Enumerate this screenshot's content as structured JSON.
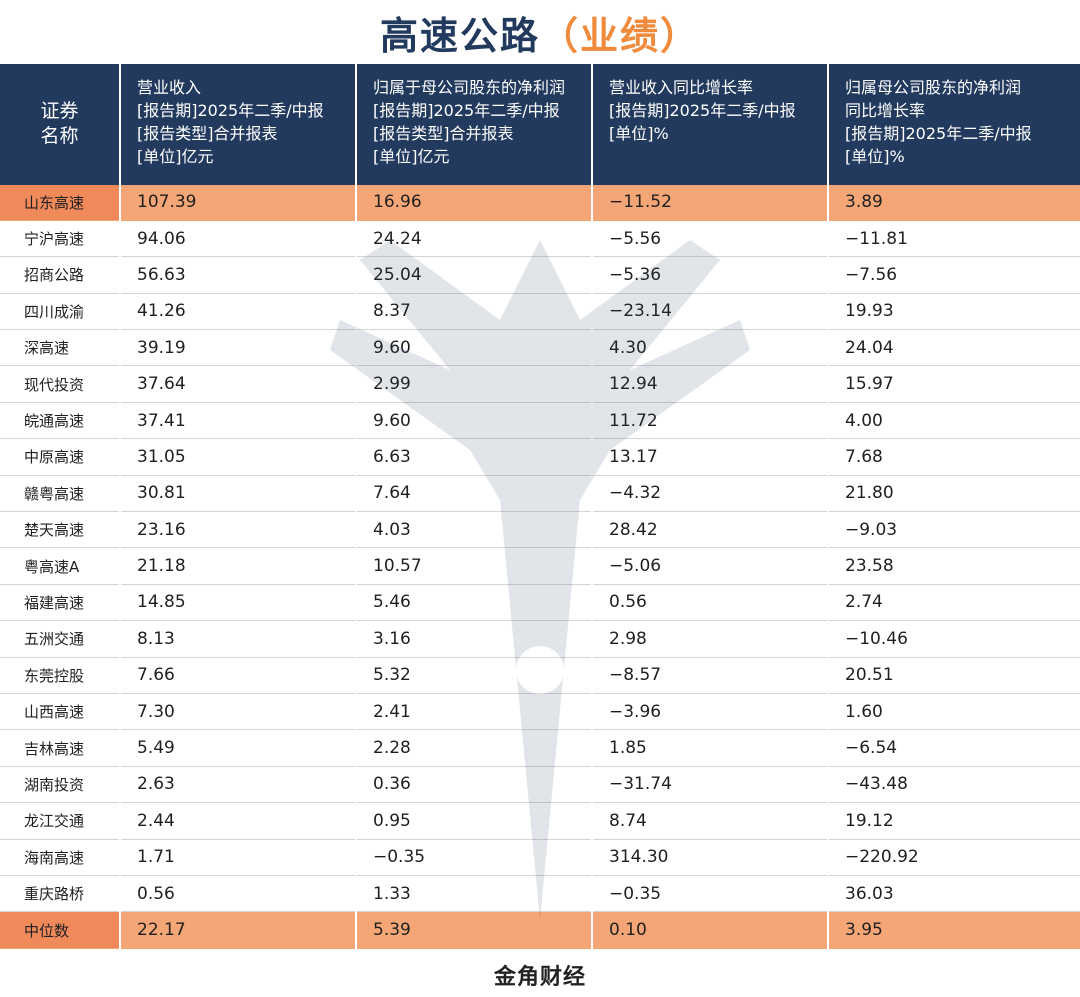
{
  "title": {
    "main": "高速公路",
    "sub": "（业绩）"
  },
  "columns": {
    "name": [
      "证券",
      "名称"
    ],
    "revenue": [
      "营业收入",
      "[报告期]2025年二季/中报",
      "[报告类型]合并报表",
      "[单位]亿元"
    ],
    "net_profit": [
      "归属于母公司股东的净利润",
      "[报告期]2025年二季/中报",
      "[报告类型]合并报表",
      "[单位]亿元"
    ],
    "revenue_growth": [
      "营业收入同比增长率",
      "[报告期]2025年二季/中报",
      "[单位]%"
    ],
    "profit_growth": [
      "归属母公司股东的净利润",
      "同比增长率",
      "[报告期]2025年二季/中报",
      "[单位]%"
    ]
  },
  "rows": [
    {
      "name": "山东高速",
      "revenue": "107.39",
      "net_profit": "16.96",
      "revenue_growth": "−11.52",
      "profit_growth": "3.89",
      "highlight": true
    },
    {
      "name": "宁沪高速",
      "revenue": "94.06",
      "net_profit": "24.24",
      "revenue_growth": "−5.56",
      "profit_growth": "−11.81"
    },
    {
      "name": "招商公路",
      "revenue": "56.63",
      "net_profit": "25.04",
      "revenue_growth": "−5.36",
      "profit_growth": "−7.56"
    },
    {
      "name": "四川成渝",
      "revenue": "41.26",
      "net_profit": "8.37",
      "revenue_growth": "−23.14",
      "profit_growth": "19.93"
    },
    {
      "name": "深高速",
      "revenue": "39.19",
      "net_profit": "9.60",
      "revenue_growth": "4.30",
      "profit_growth": "24.04"
    },
    {
      "name": "现代投资",
      "revenue": "37.64",
      "net_profit": "2.99",
      "revenue_growth": "12.94",
      "profit_growth": "15.97"
    },
    {
      "name": "皖通高速",
      "revenue": "37.41",
      "net_profit": "9.60",
      "revenue_growth": "11.72",
      "profit_growth": "4.00"
    },
    {
      "name": "中原高速",
      "revenue": "31.05",
      "net_profit": "6.63",
      "revenue_growth": "13.17",
      "profit_growth": "7.68"
    },
    {
      "name": "赣粤高速",
      "revenue": "30.81",
      "net_profit": "7.64",
      "revenue_growth": "−4.32",
      "profit_growth": "21.80"
    },
    {
      "name": "楚天高速",
      "revenue": "23.16",
      "net_profit": "4.03",
      "revenue_growth": "28.42",
      "profit_growth": "−9.03"
    },
    {
      "name": "粤高速A",
      "revenue": "21.18",
      "net_profit": "10.57",
      "revenue_growth": "−5.06",
      "profit_growth": "23.58"
    },
    {
      "name": "福建高速",
      "revenue": "14.85",
      "net_profit": "5.46",
      "revenue_growth": "0.56",
      "profit_growth": "2.74"
    },
    {
      "name": "五洲交通",
      "revenue": "8.13",
      "net_profit": "3.16",
      "revenue_growth": "2.98",
      "profit_growth": "−10.46"
    },
    {
      "name": "东莞控股",
      "revenue": "7.66",
      "net_profit": "5.32",
      "revenue_growth": "−8.57",
      "profit_growth": "20.51"
    },
    {
      "name": "山西高速",
      "revenue": "7.30",
      "net_profit": "2.41",
      "revenue_growth": "−3.96",
      "profit_growth": "1.60"
    },
    {
      "name": "吉林高速",
      "revenue": "5.49",
      "net_profit": "2.28",
      "revenue_growth": "1.85",
      "profit_growth": "−6.54"
    },
    {
      "name": "湖南投资",
      "revenue": "2.63",
      "net_profit": "0.36",
      "revenue_growth": "−31.74",
      "profit_growth": "−43.48"
    },
    {
      "name": "龙江交通",
      "revenue": "2.44",
      "net_profit": "0.95",
      "revenue_growth": "8.74",
      "profit_growth": "19.12"
    },
    {
      "name": "海南高速",
      "revenue": "1.71",
      "net_profit": "−0.35",
      "revenue_growth": "314.30",
      "profit_growth": "−220.92"
    },
    {
      "name": "重庆路桥",
      "revenue": "0.56",
      "net_profit": "1.33",
      "revenue_growth": "−0.35",
      "profit_growth": "36.03"
    },
    {
      "name": "中位数",
      "revenue": "22.17",
      "net_profit": "5.39",
      "revenue_growth": "0.10",
      "profit_growth": "3.95",
      "highlight": true
    }
  ],
  "footer": {
    "brand": "金角财经"
  },
  "watermark": {
    "icon": "deer-pen-logo-icon"
  },
  "colors": {
    "header_bg": "#223a5e",
    "accent_orange": "#f08a3c",
    "highlight_row": "#f4a676",
    "highlight_name": "#f08a5b"
  }
}
